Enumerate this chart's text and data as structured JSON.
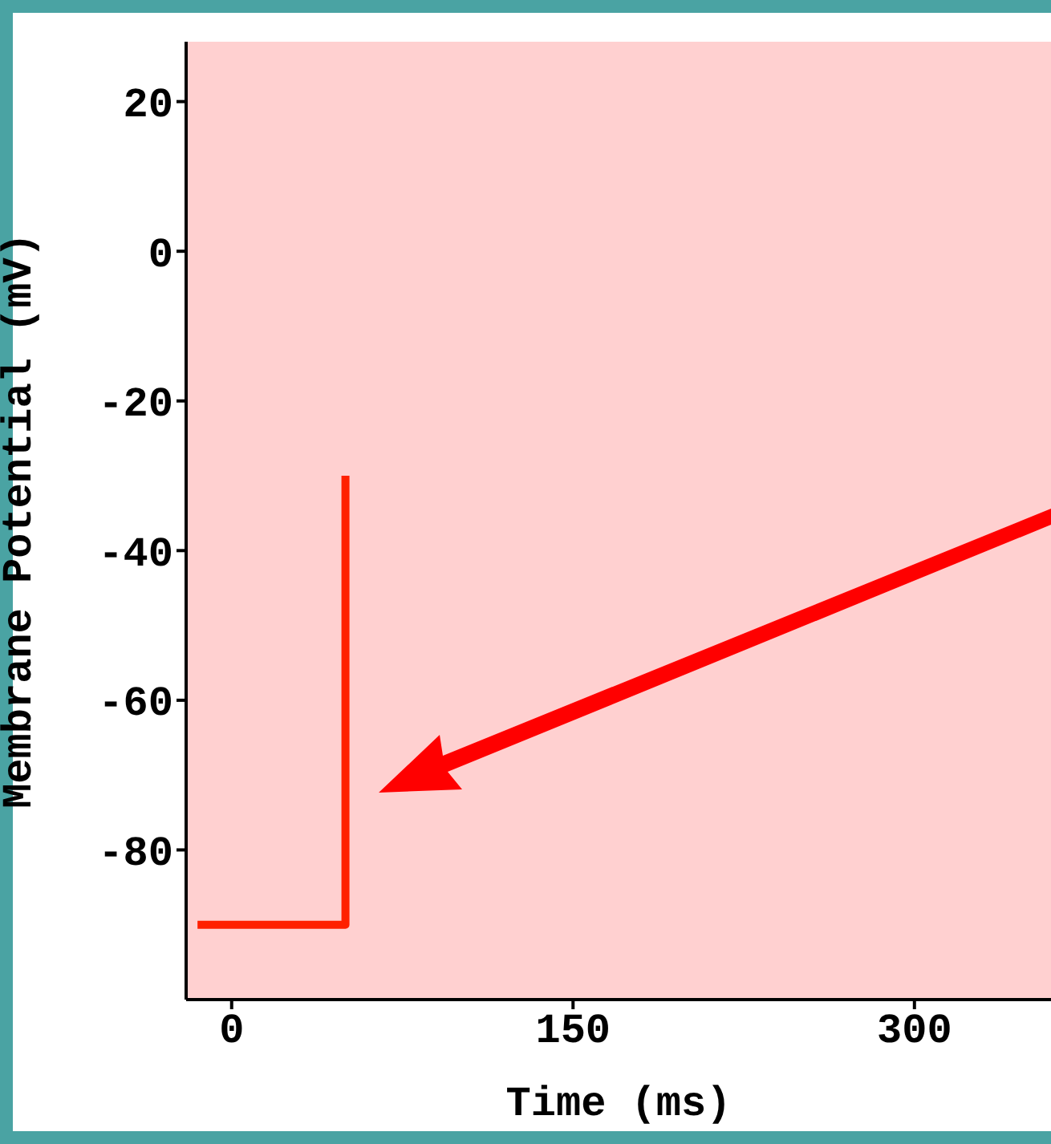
{
  "chart_data": {
    "type": "step",
    "xlabel": "Time (ms)",
    "ylabel": "Membrane Potential (mV)",
    "x": [
      -15,
      50
    ],
    "series": [
      {
        "color": "#ff2000",
        "values": [
          -90,
          -30
        ]
      }
    ],
    "xlim": [
      -20,
      360
    ],
    "xticks": [
      0,
      150,
      300
    ],
    "ylim": [
      -100,
      28
    ],
    "yticks": [
      -80,
      -60,
      -40,
      -20,
      0,
      20
    ],
    "marker": "none",
    "line_style": "solid"
  }
}
